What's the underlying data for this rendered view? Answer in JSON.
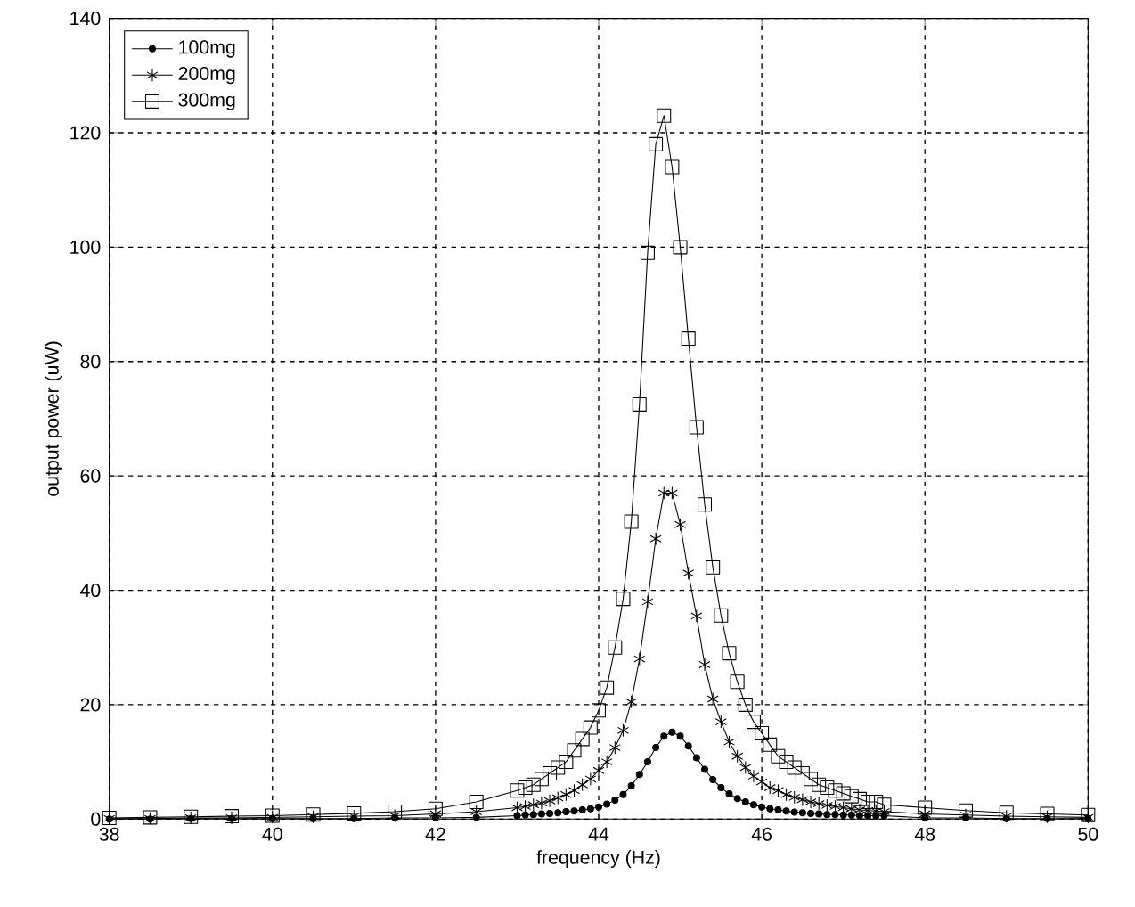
{
  "chart_data": {
    "type": "line",
    "xlabel": "frequency (Hz)",
    "ylabel": "output power (uW)",
    "xlim": [
      38,
      50
    ],
    "xticks": [
      38,
      40,
      42,
      44,
      46,
      48,
      50
    ],
    "ylim": [
      0,
      140
    ],
    "yticks": [
      0,
      20,
      40,
      60,
      80,
      100,
      120,
      140
    ],
    "grid": true,
    "legend": "top left",
    "line_style": "solid",
    "x": [
      38,
      38.5,
      39,
      39.5,
      40,
      40.5,
      41,
      41.5,
      42,
      42.5,
      43,
      43.1,
      43.2,
      43.3,
      43.4,
      43.5,
      43.6,
      43.7,
      43.8,
      43.9,
      44,
      44.1,
      44.2,
      44.3,
      44.4,
      44.5,
      44.6,
      44.7,
      44.8,
      44.9,
      45,
      45.1,
      45.2,
      45.3,
      45.4,
      45.5,
      45.6,
      45.7,
      45.8,
      45.9,
      46,
      46.1,
      46.2,
      46.3,
      46.4,
      46.5,
      46.6,
      46.7,
      46.8,
      46.9,
      47,
      47.1,
      47.2,
      47.3,
      47.4,
      47.5,
      48,
      48.5,
      49,
      49.5,
      50
    ],
    "series": [
      {
        "name": "100mg",
        "color": "#000000",
        "marker": "circle",
        "values": [
          0,
          0,
          0.1,
          0.1,
          0.1,
          0.1,
          0.1,
          0.2,
          0.2,
          0.3,
          0.6,
          0.7,
          0.8,
          0.9,
          1,
          1.1,
          1.3,
          1.4,
          1.6,
          1.8,
          2.1,
          2.6,
          3.3,
          4.3,
          5.8,
          7.8,
          10,
          12.5,
          14.5,
          15.2,
          14.5,
          12.8,
          10.7,
          8.7,
          6.9,
          5.5,
          4.4,
          3.6,
          3,
          2.5,
          2.1,
          1.8,
          1.6,
          1.4,
          1.2,
          1.1,
          1,
          0.9,
          0.8,
          0.8,
          0.7,
          0.7,
          0.6,
          0.6,
          0.6,
          0.6,
          0.2,
          0.2,
          0.1,
          0.1,
          0.1
        ]
      },
      {
        "name": "200mg",
        "color": "#000000",
        "marker": "cross",
        "values": [
          0.1,
          0.1,
          0.2,
          0.2,
          0.3,
          0.4,
          0.5,
          0.6,
          0.9,
          1.3,
          2,
          2.2,
          2.5,
          2.8,
          3.2,
          3.7,
          4.3,
          5,
          6,
          7,
          8.5,
          10,
          12.5,
          15.5,
          20.5,
          28,
          38,
          49,
          57,
          57,
          51.5,
          43,
          35.5,
          27,
          21,
          17,
          13.5,
          11,
          9,
          7.5,
          6.5,
          5.5,
          5,
          4.3,
          3.8,
          3.4,
          3,
          2.7,
          2.4,
          2.2,
          2,
          1.8,
          1.6,
          1.5,
          1.4,
          1.3,
          0.9,
          0.7,
          0.5,
          0.4,
          0.3
        ]
      },
      {
        "name": "300mg",
        "color": "#000000",
        "marker": "square",
        "values": [
          0.2,
          0.3,
          0.4,
          0.5,
          0.6,
          0.8,
          1,
          1.3,
          1.8,
          3,
          5,
          5.5,
          6,
          7,
          8,
          9,
          10,
          12,
          14,
          16,
          19,
          23,
          30,
          38.5,
          52,
          72.5,
          99,
          118,
          123,
          114,
          100,
          84,
          68.5,
          55,
          44,
          35.6,
          29,
          24,
          20,
          17,
          15,
          13,
          11,
          10,
          9,
          8,
          7,
          6,
          5.5,
          5,
          4.5,
          4,
          3.5,
          3,
          3,
          2.5,
          2,
          1.5,
          1.1,
          0.9,
          0.7
        ]
      }
    ]
  }
}
